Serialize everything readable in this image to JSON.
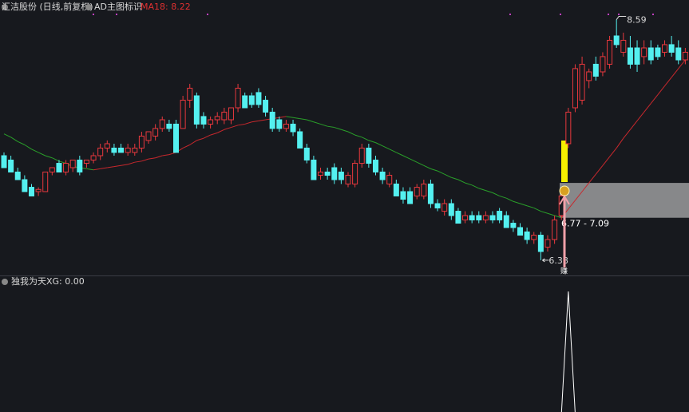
{
  "chart_data": {
    "type": "candlestick",
    "title": "汇洁股份 (日线,前复权)",
    "indicator": "AD主图标识",
    "ylim": [
      6.24,
      8.77
    ],
    "up_color": "#e8383d",
    "down_color": "#54f0f0",
    "candles": [
      [
        7.34,
        7.37,
        7.23,
        7.23
      ],
      [
        7.3,
        7.34,
        7.19,
        7.19
      ],
      [
        7.19,
        7.23,
        7.12,
        7.12
      ],
      [
        7.12,
        7.16,
        7.01,
        7.01
      ],
      [
        7.05,
        7.08,
        6.97,
        6.97
      ],
      [
        7.01,
        7.05,
        6.97,
        7.03
      ],
      [
        7.01,
        7.19,
        7.01,
        7.19
      ],
      [
        7.19,
        7.23,
        7.16,
        7.23
      ],
      [
        7.27,
        7.3,
        7.19,
        7.19
      ],
      [
        7.19,
        7.3,
        7.16,
        7.27
      ],
      [
        7.23,
        7.3,
        7.19,
        7.3
      ],
      [
        7.3,
        7.34,
        7.16,
        7.19
      ],
      [
        7.27,
        7.3,
        7.23,
        7.3
      ],
      [
        7.3,
        7.37,
        7.27,
        7.34
      ],
      [
        7.34,
        7.45,
        7.3,
        7.41
      ],
      [
        7.41,
        7.48,
        7.37,
        7.45
      ],
      [
        7.41,
        7.45,
        7.34,
        7.37
      ],
      [
        7.41,
        7.45,
        7.37,
        7.37
      ],
      [
        7.37,
        7.45,
        7.34,
        7.41
      ],
      [
        7.37,
        7.45,
        7.34,
        7.41
      ],
      [
        7.41,
        7.56,
        7.37,
        7.52
      ],
      [
        7.48,
        7.56,
        7.45,
        7.56
      ],
      [
        7.52,
        7.63,
        7.48,
        7.59
      ],
      [
        7.59,
        7.7,
        7.56,
        7.67
      ],
      [
        7.63,
        7.67,
        7.56,
        7.59
      ],
      [
        7.63,
        7.67,
        7.37,
        7.37
      ],
      [
        7.59,
        7.89,
        7.59,
        7.85
      ],
      [
        7.85,
        8.0,
        7.78,
        7.96
      ],
      [
        7.89,
        7.92,
        7.59,
        7.63
      ],
      [
        7.7,
        7.74,
        7.59,
        7.63
      ],
      [
        7.63,
        7.7,
        7.59,
        7.67
      ],
      [
        7.67,
        7.74,
        7.63,
        7.7
      ],
      [
        7.67,
        7.78,
        7.63,
        7.74
      ],
      [
        7.67,
        7.78,
        7.63,
        7.78
      ],
      [
        7.78,
        8.0,
        7.74,
        7.96
      ],
      [
        7.89,
        7.92,
        7.78,
        7.78
      ],
      [
        7.89,
        7.92,
        7.78,
        7.81
      ],
      [
        7.92,
        7.96,
        7.78,
        7.81
      ],
      [
        7.85,
        7.89,
        7.7,
        7.74
      ],
      [
        7.74,
        7.78,
        7.56,
        7.59
      ],
      [
        7.67,
        7.7,
        7.56,
        7.59
      ],
      [
        7.59,
        7.67,
        7.56,
        7.63
      ],
      [
        7.63,
        7.67,
        7.52,
        7.56
      ],
      [
        7.56,
        7.59,
        7.41,
        7.41
      ],
      [
        7.41,
        7.45,
        7.27,
        7.3
      ],
      [
        7.3,
        7.34,
        7.12,
        7.12
      ],
      [
        7.16,
        7.23,
        7.12,
        7.19
      ],
      [
        7.19,
        7.23,
        7.12,
        7.16
      ],
      [
        7.23,
        7.27,
        7.08,
        7.12
      ],
      [
        7.19,
        7.23,
        7.08,
        7.12
      ],
      [
        7.08,
        7.19,
        7.05,
        7.16
      ],
      [
        7.08,
        7.3,
        7.05,
        7.27
      ],
      [
        7.27,
        7.45,
        7.23,
        7.41
      ],
      [
        7.41,
        7.45,
        7.23,
        7.27
      ],
      [
        7.3,
        7.34,
        7.16,
        7.19
      ],
      [
        7.19,
        7.23,
        7.08,
        7.12
      ],
      [
        7.08,
        7.19,
        7.05,
        7.16
      ],
      [
        7.08,
        7.12,
        6.97,
        6.97
      ],
      [
        7.01,
        7.05,
        6.9,
        6.94
      ],
      [
        7.01,
        7.05,
        6.9,
        6.9
      ],
      [
        6.97,
        7.08,
        6.94,
        7.05
      ],
      [
        6.97,
        7.12,
        6.94,
        7.08
      ],
      [
        7.08,
        7.12,
        6.86,
        6.9
      ],
      [
        6.9,
        6.94,
        6.83,
        6.86
      ],
      [
        6.83,
        6.94,
        6.79,
        6.9
      ],
      [
        6.9,
        6.94,
        6.75,
        6.79
      ],
      [
        6.83,
        6.86,
        6.72,
        6.72
      ],
      [
        6.75,
        6.83,
        6.72,
        6.79
      ],
      [
        6.79,
        6.83,
        6.72,
        6.75
      ],
      [
        6.79,
        6.83,
        6.72,
        6.75
      ],
      [
        6.75,
        6.83,
        6.72,
        6.79
      ],
      [
        6.79,
        6.83,
        6.72,
        6.75
      ],
      [
        6.83,
        6.86,
        6.72,
        6.75
      ],
      [
        6.79,
        6.83,
        6.68,
        6.68
      ],
      [
        6.72,
        6.75,
        6.64,
        6.68
      ],
      [
        6.68,
        6.72,
        6.61,
        6.61
      ],
      [
        6.64,
        6.68,
        6.53,
        6.57
      ],
      [
        6.57,
        6.64,
        6.53,
        6.61
      ],
      [
        6.61,
        6.64,
        6.38,
        6.46
      ],
      [
        6.5,
        6.61,
        6.46,
        6.57
      ],
      [
        6.57,
        6.79,
        6.53,
        6.75
      ],
      [
        6.79,
        7.01,
        6.75,
        6.97
      ],
      [
        7.45,
        7.78,
        7.41,
        7.74
      ],
      [
        7.78,
        8.18,
        7.74,
        8.14
      ],
      [
        7.85,
        8.25,
        7.81,
        8.18
      ],
      [
        8.03,
        8.14,
        7.96,
        8.11
      ],
      [
        8.18,
        8.25,
        8.03,
        8.07
      ],
      [
        8.11,
        8.29,
        8.07,
        8.25
      ],
      [
        8.18,
        8.44,
        8.14,
        8.4
      ],
      [
        8.44,
        8.59,
        8.33,
        8.36
      ],
      [
        8.29,
        8.47,
        8.25,
        8.4
      ],
      [
        8.33,
        8.44,
        8.14,
        8.18
      ],
      [
        8.33,
        8.4,
        8.11,
        8.18
      ],
      [
        8.25,
        8.4,
        8.18,
        8.33
      ],
      [
        8.33,
        8.4,
        8.18,
        8.22
      ],
      [
        8.33,
        8.36,
        8.22,
        8.25
      ],
      [
        8.29,
        8.4,
        8.25,
        8.36
      ],
      [
        8.36,
        8.44,
        8.25,
        8.29
      ],
      [
        8.33,
        8.4,
        8.18,
        8.22
      ],
      [
        8.22,
        8.33,
        8.18,
        8.29
      ]
    ],
    "ma": {
      "label": "MA18: 8.22",
      "rise_color": "#c8282d",
      "fall_color": "#2aa02a",
      "values": [
        7.54,
        7.51,
        7.47,
        7.44,
        7.4,
        7.37,
        7.34,
        7.32,
        7.29,
        7.27,
        7.24,
        7.23,
        7.22,
        7.21,
        7.22,
        7.23,
        7.24,
        7.25,
        7.26,
        7.28,
        7.29,
        7.31,
        7.32,
        7.34,
        7.35,
        7.37,
        7.41,
        7.44,
        7.48,
        7.5,
        7.53,
        7.55,
        7.58,
        7.6,
        7.62,
        7.63,
        7.65,
        7.66,
        7.67,
        7.68,
        7.69,
        7.7,
        7.69,
        7.68,
        7.67,
        7.65,
        7.63,
        7.61,
        7.6,
        7.58,
        7.56,
        7.53,
        7.51,
        7.48,
        7.46,
        7.43,
        7.4,
        7.37,
        7.34,
        7.31,
        7.28,
        7.25,
        7.22,
        7.2,
        7.17,
        7.14,
        7.12,
        7.09,
        7.07,
        7.04,
        7.02,
        7.0,
        6.97,
        6.95,
        6.92,
        6.9,
        6.88,
        6.86,
        6.83,
        6.81,
        6.79,
        6.77,
        6.85,
        6.93,
        7.01,
        7.09,
        7.17,
        7.25,
        7.33,
        7.41,
        7.5,
        7.58,
        7.66,
        7.74,
        7.82,
        7.9,
        7.98,
        8.06,
        8.14,
        8.22
      ]
    },
    "range": {
      "low": 6.77,
      "high": 7.09,
      "label": "6.77 - 7.09"
    },
    "signal_text": "赚",
    "xg": {
      "name": "独我为天",
      "label": "XG: 0.00",
      "ylim": [
        0,
        1
      ],
      "values": [
        0,
        0,
        0,
        0,
        0,
        0,
        0,
        0,
        0,
        0,
        0,
        0,
        0,
        0,
        0,
        0,
        0,
        0,
        0,
        0,
        0,
        0,
        0,
        0,
        0,
        0,
        0,
        0,
        0,
        0,
        0,
        0,
        0,
        0,
        0,
        0,
        0,
        0,
        0,
        0,
        0,
        0,
        0,
        0,
        0,
        0,
        0,
        0,
        0,
        0,
        0,
        0,
        0,
        0,
        0,
        0,
        0,
        0,
        0,
        0,
        0,
        0,
        0,
        0,
        0,
        0,
        0,
        0,
        0,
        0,
        0,
        0,
        0,
        0,
        0,
        0,
        0,
        0,
        0,
        0,
        0,
        0,
        1,
        0,
        0,
        0,
        0,
        0,
        0,
        0,
        0,
        0,
        0,
        0,
        0,
        0,
        0,
        0,
        0,
        0
      ]
    }
  }
}
